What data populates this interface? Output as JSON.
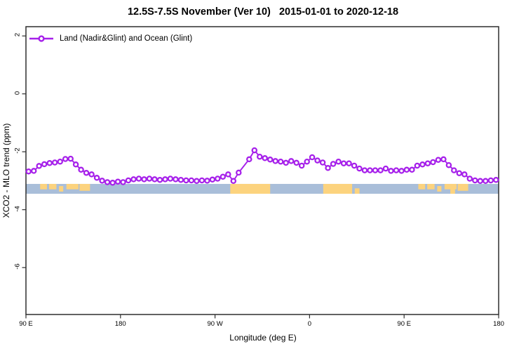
{
  "title": "12.5S-7.5S November (Ver 10)   2015-01-01 to 2020-12-18",
  "legend_label": "Land (Nadir&Glint) and Ocean (Glint)",
  "axes": {
    "x_label": "Longitude (deg E)",
    "y_label": "XCO2 - MLO trend (ppm)"
  },
  "chart_data": {
    "type": "line",
    "title": "12.5S-7.5S November (Ver 10)   2015-01-01 to 2020-12-18",
    "xlabel": "Longitude (deg E)",
    "ylabel": "XCO2 - MLO trend (ppm)",
    "xlim": [
      90,
      540
    ],
    "ylim": [
      -7.62,
      2.32
    ],
    "grid": false,
    "legend_position": "top-left-inside",
    "x_ticks": [
      {
        "pos": 90,
        "label": "90 E"
      },
      {
        "pos": 180,
        "label": "180"
      },
      {
        "pos": 270,
        "label": "90 W"
      },
      {
        "pos": 360,
        "label": "0"
      },
      {
        "pos": 450,
        "label": "90 E"
      },
      {
        "pos": 540,
        "label": "180"
      }
    ],
    "y_ticks": [
      {
        "pos": 2,
        "label": "2"
      },
      {
        "pos": 0,
        "label": "0"
      },
      {
        "pos": -2,
        "label": "-2"
      },
      {
        "pos": -4,
        "label": "-4"
      },
      {
        "pos": -6,
        "label": "-6"
      }
    ],
    "series": [
      {
        "name": "Land (Nadir&Glint) and Ocean (Glint)",
        "color": "#A620EA",
        "marker": "open-circle",
        "points": [
          [
            92.5,
            -2.68
          ],
          [
            97.5,
            -2.66
          ],
          [
            102.5,
            -2.49
          ],
          [
            107.5,
            -2.43
          ],
          [
            112.5,
            -2.39
          ],
          [
            117.5,
            -2.37
          ],
          [
            122.5,
            -2.34
          ],
          [
            127.5,
            -2.25
          ],
          [
            132.5,
            -2.24
          ],
          [
            137.5,
            -2.44
          ],
          [
            142.5,
            -2.62
          ],
          [
            147.5,
            -2.73
          ],
          [
            152.5,
            -2.78
          ],
          [
            157.5,
            -2.9
          ],
          [
            162.5,
            -3.0
          ],
          [
            167.5,
            -3.05
          ],
          [
            172.5,
            -3.07
          ],
          [
            177.5,
            -3.03
          ],
          [
            182.5,
            -3.05
          ],
          [
            187.5,
            -2.99
          ],
          [
            192.5,
            -2.95
          ],
          [
            197.5,
            -2.93
          ],
          [
            202.5,
            -2.95
          ],
          [
            207.5,
            -2.93
          ],
          [
            212.5,
            -2.95
          ],
          [
            217.5,
            -2.97
          ],
          [
            222.5,
            -2.95
          ],
          [
            227.5,
            -2.93
          ],
          [
            232.5,
            -2.95
          ],
          [
            237.5,
            -2.97
          ],
          [
            242.5,
            -2.99
          ],
          [
            247.5,
            -2.99
          ],
          [
            252.5,
            -3.01
          ],
          [
            257.5,
            -2.99
          ],
          [
            262.5,
            -3.0
          ],
          [
            267.5,
            -2.96
          ],
          [
            272.5,
            -2.93
          ],
          [
            277.5,
            -2.86
          ],
          [
            282.5,
            -2.78
          ],
          [
            287.5,
            -3.01
          ],
          [
            292.5,
            -2.72
          ],
          [
            302.5,
            -2.26
          ],
          [
            307.5,
            -1.95
          ],
          [
            312.5,
            -2.17
          ],
          [
            317.5,
            -2.22
          ],
          [
            322.5,
            -2.27
          ],
          [
            327.5,
            -2.32
          ],
          [
            332.5,
            -2.34
          ],
          [
            337.5,
            -2.38
          ],
          [
            342.5,
            -2.32
          ],
          [
            347.5,
            -2.38
          ],
          [
            352.5,
            -2.48
          ],
          [
            357.5,
            -2.34
          ],
          [
            362.5,
            -2.19
          ],
          [
            367.5,
            -2.3
          ],
          [
            372.5,
            -2.37
          ],
          [
            377.5,
            -2.56
          ],
          [
            382.5,
            -2.42
          ],
          [
            387.5,
            -2.34
          ],
          [
            392.5,
            -2.4
          ],
          [
            397.5,
            -2.4
          ],
          [
            402.5,
            -2.48
          ],
          [
            407.5,
            -2.58
          ],
          [
            412.5,
            -2.64
          ],
          [
            417.5,
            -2.64
          ],
          [
            422.5,
            -2.64
          ],
          [
            427.5,
            -2.64
          ],
          [
            432.5,
            -2.58
          ],
          [
            437.5,
            -2.66
          ],
          [
            442.5,
            -2.64
          ],
          [
            447.5,
            -2.66
          ],
          [
            452.5,
            -2.62
          ],
          [
            457.5,
            -2.62
          ],
          [
            462.5,
            -2.48
          ],
          [
            467.5,
            -2.44
          ],
          [
            472.5,
            -2.4
          ],
          [
            477.5,
            -2.36
          ],
          [
            482.5,
            -2.28
          ],
          [
            487.5,
            -2.26
          ],
          [
            492.5,
            -2.46
          ],
          [
            497.5,
            -2.64
          ],
          [
            502.5,
            -2.74
          ],
          [
            507.5,
            -2.78
          ],
          [
            512.5,
            -2.93
          ],
          [
            517.5,
            -2.99
          ],
          [
            522.5,
            -3.01
          ],
          [
            527.5,
            -3.01
          ],
          [
            532.5,
            -2.99
          ],
          [
            537.5,
            -2.97
          ]
        ]
      }
    ],
    "map_band": {
      "description": "land-ocean strip for latitude band 12.5S-7.5S",
      "ocean_color": "#A9BED9",
      "land_color": "#FCD37E",
      "value_top": -3.11,
      "value_bottom": -3.45,
      "land_patches": [
        {
          "from": 103.5,
          "to": 110.0,
          "part": "top"
        },
        {
          "from": 112.0,
          "to": 119.0,
          "part": "top"
        },
        {
          "from": 121.5,
          "to": 125.5,
          "part": "mid"
        },
        {
          "from": 128.5,
          "to": 140.0,
          "part": "top"
        },
        {
          "from": 141.0,
          "to": 151.0,
          "part": "topmid"
        },
        {
          "from": 284.5,
          "to": 322.5,
          "part": "full"
        },
        {
          "from": 373.0,
          "to": 400.5,
          "part": "full"
        },
        {
          "from": 403.0,
          "to": 407.5,
          "part": "bottom"
        },
        {
          "from": 463.5,
          "to": 470.0,
          "part": "top"
        },
        {
          "from": 472.0,
          "to": 479.0,
          "part": "top"
        },
        {
          "from": 481.5,
          "to": 485.5,
          "part": "mid"
        },
        {
          "from": 488.5,
          "to": 500.0,
          "part": "top"
        },
        {
          "from": 494.0,
          "to": 498.5,
          "part": "bottom"
        },
        {
          "from": 501.0,
          "to": 511.0,
          "part": "topmid"
        }
      ]
    },
    "frame_color": "#2e2e2e"
  }
}
